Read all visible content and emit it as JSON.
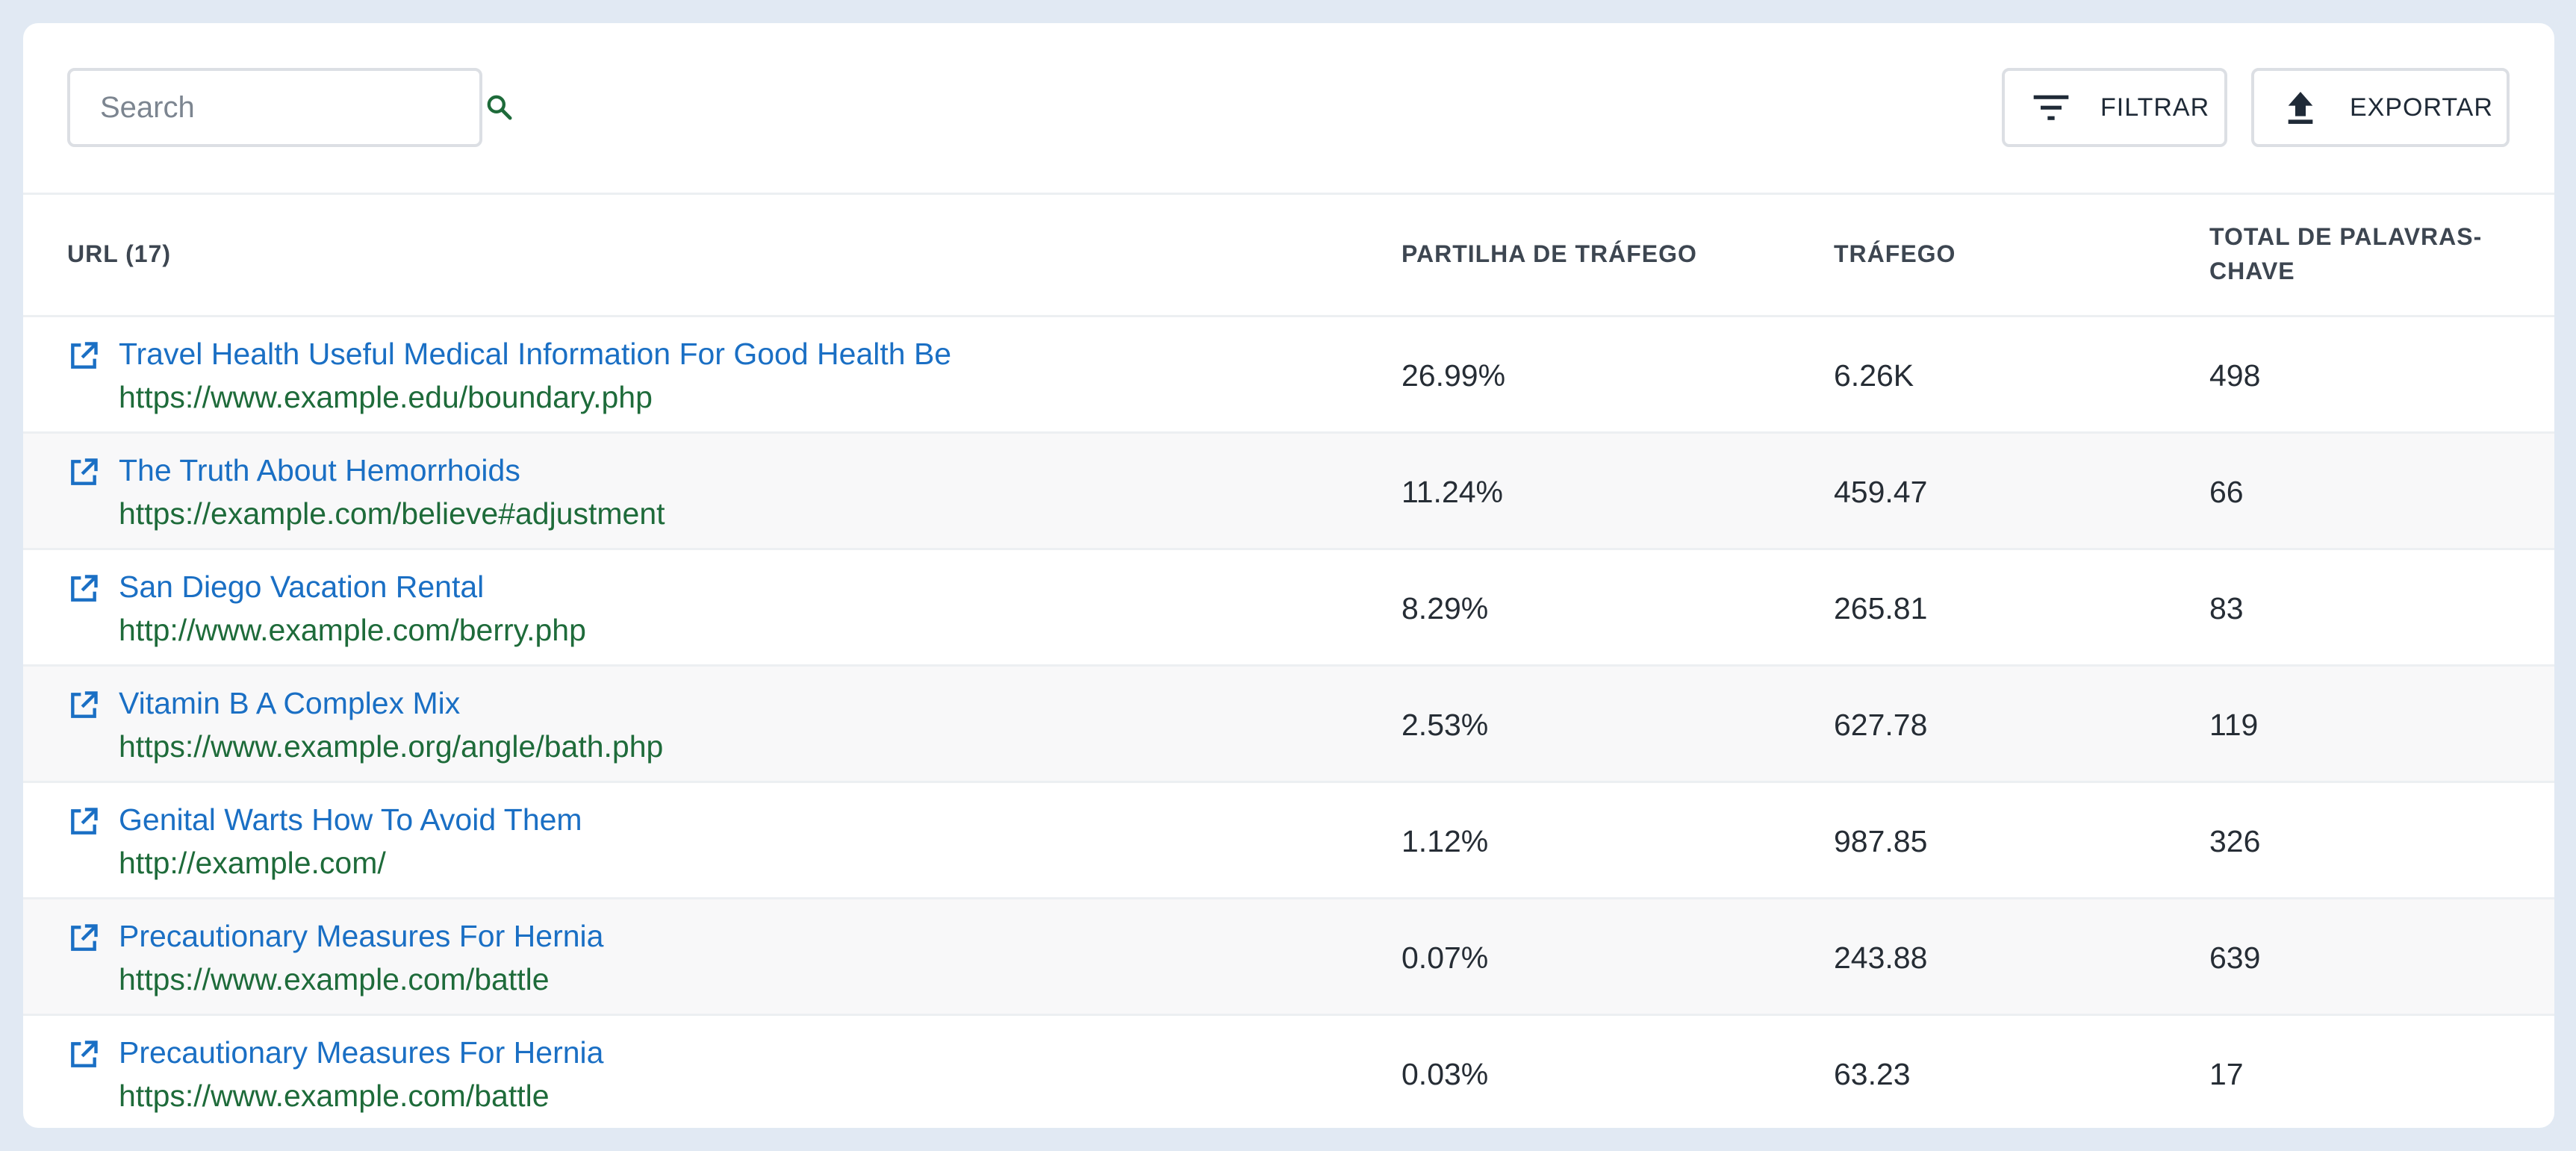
{
  "colors": {
    "background": "#e1e9f3",
    "link": "#1a6fc4",
    "url": "#1e6b3a",
    "search_icon": "#1e6b3a"
  },
  "toolbar": {
    "search_placeholder": "Search",
    "search_icon": "search-icon",
    "filter_label": "FILTRAR",
    "filter_icon": "filter-icon",
    "export_label": "EXPORTAR",
    "export_icon": "upload-icon"
  },
  "table": {
    "columns": {
      "url": "URL (17)",
      "share": "PARTILHA DE TRÁFEGO",
      "traffic": "TRÁFEGO",
      "total": "TOTAL DE PALAVRAS-CHAVE"
    },
    "rows": [
      {
        "title": "Travel Health Useful Medical Information For Good Health Be",
        "url": "https://www.example.edu/boundary.php",
        "share": "26.99%",
        "traffic": "6.26K",
        "total": "498"
      },
      {
        "title": "The Truth About Hemorrhoids",
        "url": "https://example.com/believe#adjustment",
        "share": "11.24%",
        "traffic": "459.47",
        "total": "66"
      },
      {
        "title": "San Diego Vacation Rental",
        "url": "http://www.example.com/berry.php",
        "share": "8.29%",
        "traffic": "265.81",
        "total": "83"
      },
      {
        "title": "Vitamin B A Complex Mix",
        "url": "https://www.example.org/angle/bath.php",
        "share": "2.53%",
        "traffic": "627.78",
        "total": "119"
      },
      {
        "title": "Genital Warts How To Avoid Them",
        "url": "http://example.com/",
        "share": "1.12%",
        "traffic": "987.85",
        "total": "326"
      },
      {
        "title": "Precautionary Measures For Hernia",
        "url": "https://www.example.com/battle",
        "share": "0.07%",
        "traffic": "243.88",
        "total": "639"
      },
      {
        "title": "Precautionary Measures For Hernia",
        "url": "https://www.example.com/battle",
        "share": "0.03%",
        "traffic": "63.23",
        "total": "17"
      }
    ]
  }
}
